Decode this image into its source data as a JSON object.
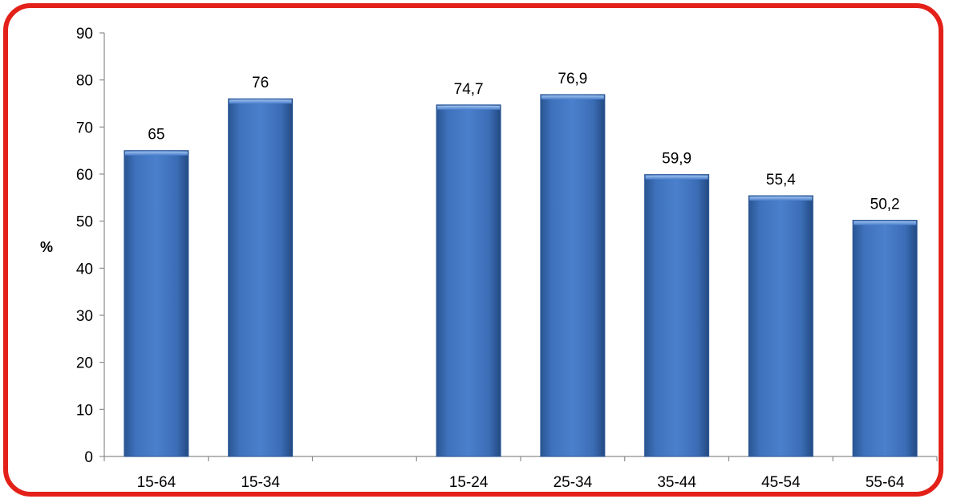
{
  "chart_data": {
    "type": "bar",
    "title": "",
    "xlabel": "",
    "ylabel": "%",
    "ylim": [
      0,
      90
    ],
    "yticks": [
      0,
      10,
      20,
      30,
      40,
      50,
      60,
      70,
      80,
      90
    ],
    "grid": false,
    "categories": [
      "15-64",
      "15-34",
      "",
      "15-24",
      "25-34",
      "35-44",
      "45-54",
      "55-64"
    ],
    "values": [
      65,
      76,
      null,
      74.7,
      76.9,
      59.9,
      55.4,
      50.2
    ],
    "data_labels": [
      "65",
      "76",
      "",
      "74,7",
      "76,9",
      "59,9",
      "55,4",
      "50,2"
    ],
    "bar_color": "#3f74c0",
    "border_color": "#e32119"
  }
}
